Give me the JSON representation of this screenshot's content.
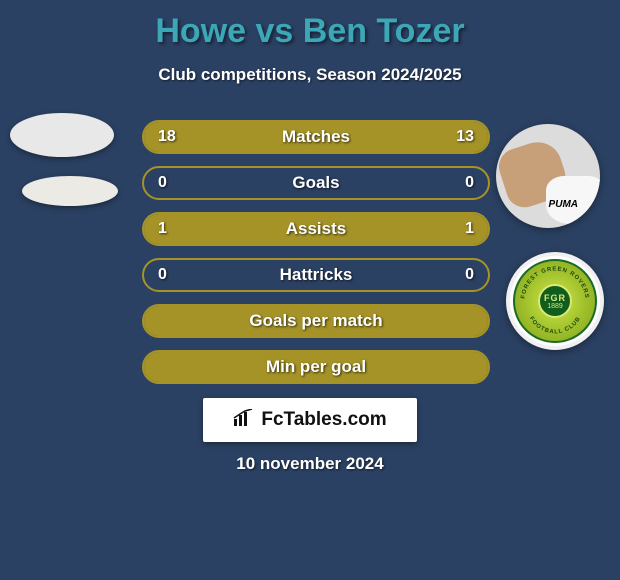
{
  "title": "Howe vs Ben Tozer",
  "subtitle": "Club competitions, Season 2024/2025",
  "colors": {
    "background": "#2b4163",
    "accent": "#a59327",
    "title": "#3ca7b7",
    "text": "#ffffff"
  },
  "stats": {
    "rows": [
      {
        "label": "Matches",
        "left": "18",
        "right": "13",
        "fill_left_pct": 50,
        "fill_right_pct": 50
      },
      {
        "label": "Goals",
        "left": "0",
        "right": "0",
        "fill_left_pct": 0,
        "fill_right_pct": 0
      },
      {
        "label": "Assists",
        "left": "1",
        "right": "1",
        "fill_left_pct": 50,
        "fill_right_pct": 50
      },
      {
        "label": "Hattricks",
        "left": "0",
        "right": "0",
        "fill_left_pct": 0,
        "fill_right_pct": 0
      },
      {
        "label": "Goals per match",
        "left": "",
        "right": "",
        "fill_left_pct": 100,
        "fill_right_pct": 0
      },
      {
        "label": "Min per goal",
        "left": "",
        "right": "",
        "fill_left_pct": 100,
        "fill_right_pct": 0
      }
    ],
    "bar_border_color": "#a59327",
    "bar_fill_color": "#a59327",
    "label_color": "#ffffff",
    "fontsize": 17
  },
  "right_player": {
    "shirt_logo_text": "PUMA"
  },
  "club_badge": {
    "center_text": "FGR",
    "year": "1889",
    "ring_top": "FOREST GREEN ROVERS",
    "ring_bottom": "FOOTBALL CLUB",
    "ring_color": "#1a6b22",
    "inner_green": "#9fbf2a",
    "center_green": "#115e1c"
  },
  "branding": {
    "text": "FcTables.com"
  },
  "date": "10 november 2024"
}
